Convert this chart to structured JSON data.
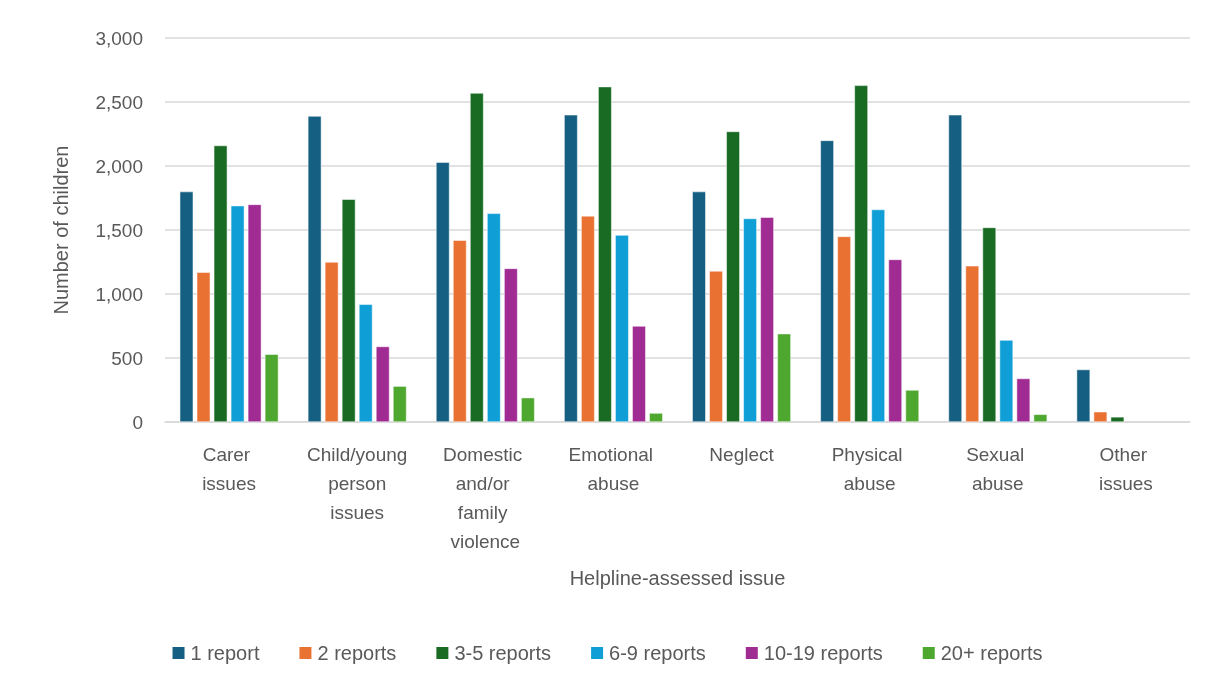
{
  "chart_data": {
    "type": "bar",
    "xlabel": "Helpline-assessed issue",
    "ylabel": "Number of children",
    "categories": [
      "Carer issues",
      "Child/young person issues",
      "Domestic and/or family violence",
      "Emotional abuse",
      "Neglect",
      "Physical abuse",
      "Sexual abuse",
      "Other issues"
    ],
    "series": [
      {
        "name": "1 report",
        "color": "#156082",
        "values": [
          1800,
          2390,
          2030,
          2400,
          1800,
          2200,
          2400,
          410
        ]
      },
      {
        "name": "2 reports",
        "color": "#e97132",
        "values": [
          1170,
          1250,
          1420,
          1610,
          1180,
          1450,
          1220,
          80
        ]
      },
      {
        "name": "3-5 reports",
        "color": "#196b24",
        "values": [
          2160,
          1740,
          2570,
          2620,
          2270,
          2630,
          1520,
          40
        ]
      },
      {
        "name": "6-9 reports",
        "color": "#0f9ed5",
        "values": [
          1690,
          920,
          1630,
          1460,
          1590,
          1660,
          640,
          null
        ]
      },
      {
        "name": "10-19 reports",
        "color": "#a02b93",
        "values": [
          1700,
          590,
          1200,
          750,
          1600,
          1270,
          340,
          null
        ]
      },
      {
        "name": "20+ reports",
        "color": "#4ea72e",
        "values": [
          530,
          280,
          190,
          70,
          690,
          250,
          60,
          null
        ]
      }
    ],
    "ylim": [
      0,
      3000
    ],
    "yticks": [
      {
        "value": 0,
        "label": "0"
      },
      {
        "value": 500,
        "label": "500"
      },
      {
        "value": 1000,
        "label": "1,000"
      },
      {
        "value": 1500,
        "label": "1,500"
      },
      {
        "value": 2000,
        "label": "2,000"
      },
      {
        "value": 2500,
        "label": "2,500"
      },
      {
        "value": 3000,
        "label": "3,000"
      }
    ],
    "grid": "y",
    "legend": "bottom"
  }
}
